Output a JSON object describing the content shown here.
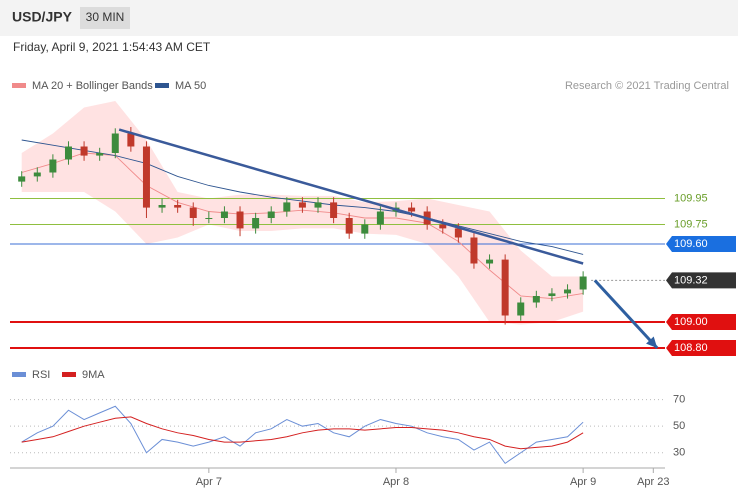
{
  "chart_data": [
    {
      "type": "candlestick",
      "title": "USD/JPY",
      "interval": "30 MIN",
      "timestamp": "Friday, April 9, 2021 1:54:43 AM CET",
      "credit": "Research © 2021 Trading Central",
      "x": [
        0,
        2,
        4,
        6,
        8,
        10,
        12,
        14,
        16,
        18,
        20,
        22,
        24,
        26,
        28,
        30,
        32,
        34,
        36,
        38,
        40,
        42,
        44,
        46,
        48,
        50,
        52,
        54,
        56,
        58,
        60,
        62,
        64,
        66,
        68,
        70,
        72
      ],
      "open": [
        110.08,
        110.12,
        110.15,
        110.25,
        110.35,
        110.28,
        110.3,
        110.45,
        110.35,
        109.88,
        109.9,
        109.88,
        109.8,
        109.8,
        109.85,
        109.72,
        109.8,
        109.85,
        109.92,
        109.88,
        109.92,
        109.8,
        109.68,
        109.75,
        109.85,
        109.88,
        109.85,
        109.75,
        109.72,
        109.65,
        109.45,
        109.48,
        109.05,
        109.15,
        109.2,
        109.22,
        109.25
      ],
      "high": [
        110.16,
        110.19,
        110.29,
        110.39,
        110.39,
        110.34,
        110.49,
        110.5,
        110.39,
        109.95,
        109.94,
        109.92,
        109.85,
        109.89,
        109.89,
        109.84,
        109.89,
        109.96,
        109.96,
        109.96,
        109.96,
        109.84,
        109.79,
        109.89,
        109.92,
        109.92,
        109.89,
        109.79,
        109.76,
        109.69,
        109.52,
        109.52,
        109.19,
        109.24,
        109.26,
        109.29,
        109.39
      ],
      "low": [
        110.04,
        110.08,
        110.11,
        110.21,
        110.24,
        110.24,
        110.26,
        110.31,
        109.8,
        109.84,
        109.84,
        109.74,
        109.76,
        109.76,
        109.66,
        109.68,
        109.76,
        109.81,
        109.84,
        109.84,
        109.76,
        109.64,
        109.64,
        109.71,
        109.81,
        109.81,
        109.71,
        109.68,
        109.61,
        109.41,
        109.41,
        108.98,
        109.01,
        109.11,
        109.16,
        109.18,
        109.21
      ],
      "close": [
        110.12,
        110.15,
        110.25,
        110.35,
        110.28,
        110.3,
        110.45,
        110.35,
        109.88,
        109.9,
        109.88,
        109.8,
        109.8,
        109.85,
        109.72,
        109.8,
        109.85,
        109.92,
        109.88,
        109.92,
        109.8,
        109.68,
        109.75,
        109.85,
        109.88,
        109.85,
        109.75,
        109.72,
        109.65,
        109.45,
        109.48,
        109.05,
        109.15,
        109.2,
        109.22,
        109.25,
        109.35
      ],
      "up_color": "#3d8b3d",
      "down_color": "#c0392b",
      "series": [
        {
          "name": "MA 20 + Bollinger Bands",
          "color": "#f08a8a",
          "band_color": "#ffd6d6",
          "x": [
            0,
            4,
            8,
            12,
            16,
            20,
            24,
            28,
            32,
            36,
            40,
            44,
            48,
            52,
            56,
            60,
            64,
            68,
            72
          ],
          "values": [
            110.15,
            110.22,
            110.3,
            110.28,
            110.05,
            109.92,
            109.85,
            109.83,
            109.84,
            109.86,
            109.84,
            109.8,
            109.8,
            109.76,
            109.62,
            109.4,
            109.2,
            109.18,
            109.22
          ],
          "upper": [
            110.3,
            110.45,
            110.65,
            110.7,
            110.4,
            110.0,
            109.95,
            109.98,
            109.98,
            109.97,
            109.97,
            109.92,
            109.93,
            109.95,
            109.9,
            109.85,
            109.55,
            109.35,
            109.35
          ],
          "lower": [
            110.0,
            110.0,
            110.0,
            109.85,
            109.6,
            109.65,
            109.75,
            109.7,
            109.7,
            109.72,
            109.72,
            109.68,
            109.67,
            109.6,
            109.35,
            109.0,
            108.98,
            109.0,
            109.08
          ]
        },
        {
          "name": "MA 50",
          "color": "#2e5590",
          "x": [
            0,
            4,
            8,
            12,
            16,
            20,
            24,
            28,
            32,
            36,
            40,
            44,
            48,
            52,
            56,
            60,
            64,
            68,
            72
          ],
          "values": [
            110.4,
            110.36,
            110.32,
            110.28,
            110.22,
            110.12,
            110.05,
            110.0,
            109.96,
            109.93,
            109.9,
            109.88,
            109.85,
            109.8,
            109.74,
            109.68,
            109.62,
            109.58,
            109.52
          ]
        }
      ],
      "levels": [
        {
          "value": 109.95,
          "label": "109.95",
          "color": "#8fbf3f",
          "text_color": "#6a9e2a"
        },
        {
          "value": 109.75,
          "label": "109.75",
          "color": "#8fbf3f",
          "text_color": "#6a9e2a"
        },
        {
          "value": 109.6,
          "label": "109.60",
          "color": "#3b6fd6",
          "box": "#1a6fe0"
        },
        {
          "value": 109.32,
          "label": "109.32",
          "color": "#999999",
          "box": "#333333",
          "dotted": true
        },
        {
          "value": 109,
          "label": "109.00",
          "color": "#e01010",
          "box": "#e01010"
        },
        {
          "value": 108.8,
          "label": "108.80",
          "color": "#e01010",
          "box": "#e01010"
        }
      ],
      "trendline": {
        "x": [
          12.5,
          72
        ],
        "y": [
          110.48,
          109.45
        ],
        "color": "#3a5a9a"
      },
      "forecast": {
        "x": [
          73.5,
          81.5
        ],
        "y": [
          109.32,
          108.8
        ],
        "color": "#2e5fa0"
      },
      "xlim": [
        -1.5,
        82.5
      ],
      "ylim": [
        108.75,
        110.75
      ]
    },
    {
      "type": "line",
      "x": [
        0,
        2,
        4,
        6,
        8,
        10,
        12,
        14,
        16,
        18,
        20,
        22,
        24,
        26,
        28,
        30,
        32,
        34,
        36,
        38,
        40,
        42,
        44,
        46,
        48,
        50,
        52,
        54,
        56,
        58,
        60,
        62,
        64,
        66,
        68,
        70,
        72
      ],
      "series": [
        {
          "name": "RSI",
          "color": "#6b8fd6",
          "values": [
            38,
            45,
            50,
            62,
            55,
            60,
            65,
            52,
            30,
            40,
            38,
            35,
            38,
            42,
            35,
            45,
            48,
            55,
            50,
            52,
            45,
            42,
            50,
            55,
            52,
            50,
            45,
            42,
            40,
            32,
            38,
            22,
            30,
            38,
            40,
            42,
            53
          ]
        },
        {
          "name": "9MA",
          "color": "#d42020",
          "values": [
            38,
            40,
            42,
            46,
            50,
            53,
            56,
            57,
            52,
            48,
            45,
            43,
            40,
            38,
            38,
            39,
            40,
            42,
            45,
            47,
            48,
            48,
            47,
            48,
            49,
            49,
            48,
            47,
            45,
            42,
            40,
            35,
            33,
            34,
            35,
            38,
            45
          ]
        }
      ],
      "xlim": [
        -1.5,
        82.5
      ],
      "ylim": [
        17,
        81
      ],
      "yticks": [
        70,
        50,
        30
      ],
      "xticks": [
        {
          "value": 24,
          "label": "Apr 7"
        },
        {
          "value": 48,
          "label": "Apr 8"
        },
        {
          "value": 72,
          "label": "Apr 9"
        },
        {
          "value": 81,
          "label": "Apr 23"
        }
      ]
    }
  ]
}
